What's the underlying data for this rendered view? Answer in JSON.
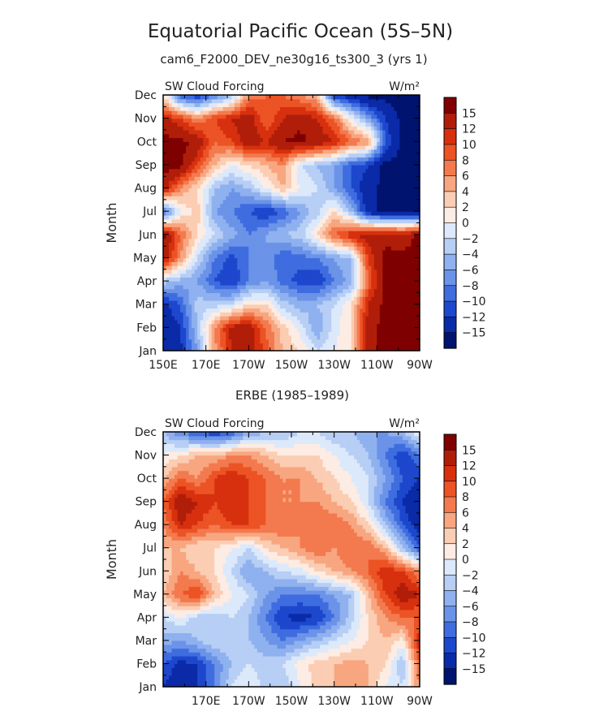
{
  "figure": {
    "title": "Equatorial Pacific Ocean (5S–5N)",
    "subtitle": "cam6_F2000_DEV_ne30g16_ts300_3 (yrs 1)",
    "panel2_title": "ERBE (1985–1989)"
  },
  "chart_data": [
    {
      "type": "heatmap",
      "panel": "top",
      "title": "SW Cloud Forcing",
      "units": "W/m²",
      "ylabel": "Month",
      "xlabel": "",
      "x_ticks": [
        "150E",
        "170E",
        "170W",
        "150W",
        "130W",
        "110W",
        "90W"
      ],
      "y_ticks": [
        "Jan",
        "Feb",
        "Mar",
        "Apr",
        "May",
        "Jun",
        "Jul",
        "Aug",
        "Sep",
        "Oct",
        "Nov",
        "Dec"
      ],
      "levels": [
        "15",
        "12",
        "10",
        "8",
        "6",
        "4",
        "2",
        "0",
        "−2",
        "−4",
        "−6",
        "−8",
        "−10",
        "−12",
        "−15"
      ],
      "colors": [
        "#7f0000",
        "#b01e0a",
        "#d7300f",
        "#ec5325",
        "#f37a4e",
        "#f8a680",
        "#fbcdb3",
        "#fdece3",
        "#dce9fb",
        "#b7cef5",
        "#8fb1ef",
        "#6b93e8",
        "#3f6de0",
        "#1d47cc",
        "#0a2aa8",
        "#00136e"
      ],
      "xlim": [
        150,
        270
      ],
      "ylim": [
        1,
        12
      ],
      "grid_x": [
        150,
        158,
        166,
        174,
        182,
        190,
        198,
        206,
        214,
        222,
        230,
        238,
        246,
        254,
        262,
        270
      ],
      "grid_y": [
        1,
        2,
        3,
        4,
        5,
        6,
        7,
        8,
        9,
        10,
        11,
        12
      ],
      "values": [
        [
          -14,
          -13,
          -6,
          5,
          12,
          14,
          9,
          4,
          2,
          -2,
          0,
          2,
          14,
          16,
          16,
          16
        ],
        [
          -14,
          -12,
          -4,
          6,
          13,
          14,
          8,
          3,
          -1,
          -6,
          -1,
          2,
          14,
          16,
          16,
          16
        ],
        [
          -13,
          -10,
          -3,
          -3,
          -2,
          2,
          2,
          -3,
          -5,
          -4,
          -2,
          2,
          12,
          16,
          16,
          16
        ],
        [
          -3,
          -5,
          -6,
          -10,
          -12,
          -8,
          -6,
          -9,
          -11,
          -12,
          -8,
          -5,
          8,
          16,
          16,
          16
        ],
        [
          14,
          6,
          -2,
          -8,
          -11,
          -8,
          -6,
          -10,
          -9,
          -8,
          -6,
          -4,
          10,
          16,
          16,
          16
        ],
        [
          16,
          8,
          2,
          -2,
          -5,
          -8,
          -6,
          -4,
          -3,
          2,
          8,
          12,
          14,
          14,
          13,
          16
        ],
        [
          -10,
          0,
          3,
          -6,
          -8,
          -10,
          -12,
          -10,
          -6,
          -3,
          2,
          -4,
          -14,
          -16,
          -16,
          -16
        ],
        [
          14,
          6,
          2,
          -4,
          -6,
          -4,
          0,
          4,
          0,
          -2,
          -6,
          -10,
          -14,
          -16,
          -16,
          -16
        ],
        [
          16,
          16,
          10,
          4,
          0,
          2,
          4,
          6,
          -2,
          -4,
          -6,
          -10,
          -12,
          -16,
          -16,
          -16
        ],
        [
          16,
          16,
          14,
          8,
          10,
          14,
          12,
          15,
          16,
          14,
          12,
          8,
          6,
          -10,
          -16,
          -16
        ],
        [
          13,
          10,
          6,
          10,
          12,
          14,
          8,
          12,
          14,
          12,
          8,
          0,
          -6,
          -12,
          -16,
          -16
        ],
        [
          2,
          -10,
          -12,
          -8,
          -4,
          6,
          8,
          8,
          6,
          4,
          -12,
          -14,
          -16,
          -16,
          -16,
          -16
        ]
      ]
    },
    {
      "type": "heatmap",
      "panel": "bottom",
      "title": "SW Cloud Forcing",
      "units": "W/m²",
      "ylabel": "Month",
      "xlabel": "",
      "x_ticks": [
        "170E",
        "170W",
        "150W",
        "130W",
        "110W",
        "90W"
      ],
      "y_ticks": [
        "Jan",
        "Feb",
        "Mar",
        "Apr",
        "May",
        "Jun",
        "Jul",
        "Aug",
        "Sep",
        "Oct",
        "Nov",
        "Dec"
      ],
      "levels": [
        "15",
        "12",
        "10",
        "8",
        "6",
        "4",
        "2",
        "0",
        "−2",
        "−4",
        "−6",
        "−8",
        "−10",
        "−12",
        "−15"
      ],
      "colors": [
        "#7f0000",
        "#b01e0a",
        "#d7300f",
        "#ec5325",
        "#f37a4e",
        "#f8a680",
        "#fbcdb3",
        "#fdece3",
        "#dce9fb",
        "#b7cef5",
        "#8fb1ef",
        "#6b93e8",
        "#3f6de0",
        "#1d47cc",
        "#0a2aa8",
        "#00136e"
      ],
      "xlim": [
        150,
        270
      ],
      "ylim": [
        1,
        12
      ],
      "grid_x": [
        150,
        158,
        166,
        174,
        182,
        190,
        198,
        206,
        214,
        222,
        230,
        238,
        246,
        254,
        262,
        270
      ],
      "grid_y": [
        1,
        2,
        3,
        4,
        5,
        6,
        7,
        8,
        9,
        10,
        11,
        12
      ],
      "values": [
        [
          -12,
          -14,
          -12,
          -8,
          -2,
          0,
          -3,
          -4,
          0,
          3,
          4,
          6,
          4,
          0,
          -2,
          6
        ],
        [
          -10,
          -13,
          -12,
          -8,
          -4,
          -2,
          -3,
          -2,
          1,
          3,
          4,
          5,
          4,
          2,
          -4,
          8
        ],
        [
          -5,
          -6,
          -4,
          -2,
          -2,
          -4,
          -6,
          -8,
          -6,
          -4,
          -2,
          0,
          2,
          4,
          1,
          12
        ],
        [
          -2,
          0,
          -3,
          -4,
          -2,
          -4,
          -8,
          -12,
          -13,
          -12,
          -8,
          -3,
          2,
          6,
          8,
          8
        ],
        [
          4,
          8,
          10,
          4,
          0,
          -2,
          -6,
          -8,
          -8,
          -8,
          -6,
          -4,
          4,
          10,
          14,
          12
        ],
        [
          2,
          6,
          4,
          2,
          -2,
          -6,
          -4,
          -2,
          -1,
          2,
          4,
          6,
          8,
          12,
          10,
          6
        ],
        [
          4,
          4,
          2,
          2,
          0,
          -2,
          2,
          4,
          6,
          8,
          6,
          8,
          8,
          4,
          -4,
          -10
        ],
        [
          6,
          12,
          10,
          8,
          10,
          10,
          8,
          8,
          6,
          8,
          8,
          6,
          2,
          -4,
          -10,
          -14
        ],
        [
          8,
          14,
          12,
          10,
          12,
          10,
          8,
          6,
          6,
          6,
          4,
          2,
          -2,
          -8,
          -12,
          -15
        ],
        [
          4,
          8,
          6,
          10,
          12,
          10,
          8,
          6,
          6,
          4,
          2,
          0,
          -2,
          -6,
          -10,
          -12
        ],
        [
          0,
          2,
          4,
          4,
          6,
          6,
          4,
          2,
          2,
          2,
          0,
          -2,
          -4,
          -8,
          -12,
          -8
        ],
        [
          -4,
          -8,
          -10,
          -12,
          -10,
          -6,
          -4,
          -4,
          -2,
          -2,
          -4,
          -4,
          -6,
          -6,
          -4,
          0
        ]
      ]
    }
  ]
}
